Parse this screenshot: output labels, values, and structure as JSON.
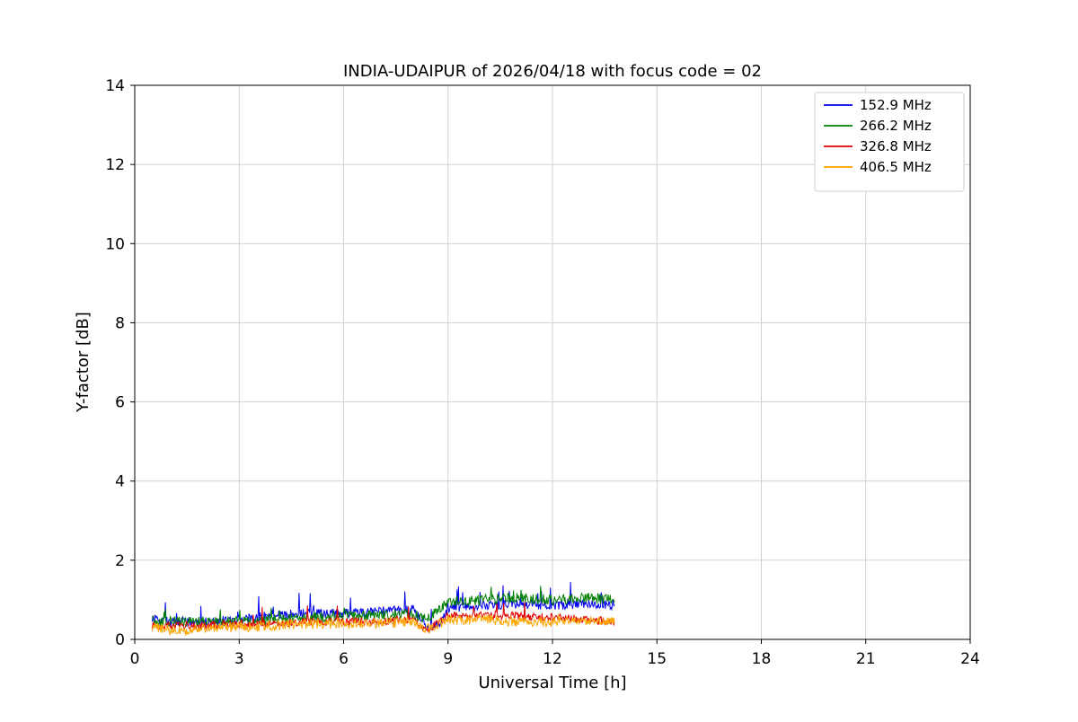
{
  "chart_data": {
    "type": "line",
    "title": "INDIA-UDAIPUR of 2026/04/18 with focus code = 02",
    "xlabel": "Universal Time [h]",
    "ylabel": "Y-factor [dB]",
    "xlim": [
      0,
      24
    ],
    "ylim": [
      0,
      14
    ],
    "xticks": [
      0,
      3,
      6,
      9,
      12,
      15,
      18,
      21,
      24
    ],
    "yticks": [
      0,
      2,
      4,
      6,
      8,
      10,
      12,
      14
    ],
    "grid": true,
    "legend_position": "upper right",
    "series": [
      {
        "name": "152.9 MHz",
        "color": "#0000ee",
        "x_start": 0.5,
        "x_end": 13.78,
        "baseline": [
          [
            0.5,
            0.5
          ],
          [
            1.0,
            0.45
          ],
          [
            2.0,
            0.45
          ],
          [
            3.0,
            0.5
          ],
          [
            4.0,
            0.62
          ],
          [
            5.0,
            0.65
          ],
          [
            6.0,
            0.65
          ],
          [
            7.0,
            0.7
          ],
          [
            8.0,
            0.75
          ],
          [
            8.4,
            0.3
          ],
          [
            8.8,
            0.4
          ],
          [
            9.0,
            0.8
          ],
          [
            10.0,
            0.85
          ],
          [
            11.0,
            0.9
          ],
          [
            12.0,
            0.85
          ],
          [
            13.0,
            0.9
          ],
          [
            13.78,
            0.85
          ]
        ],
        "noise_amp": 0.12,
        "spike_prob": 0.05,
        "spike_max": 0.5
      },
      {
        "name": "266.2 MHz",
        "color": "#008000",
        "x_start": 0.5,
        "x_end": 13.78,
        "baseline": [
          [
            0.5,
            0.45
          ],
          [
            2.0,
            0.45
          ],
          [
            3.0,
            0.45
          ],
          [
            4.0,
            0.5
          ],
          [
            5.0,
            0.55
          ],
          [
            6.0,
            0.6
          ],
          [
            7.0,
            0.6
          ],
          [
            8.0,
            0.65
          ],
          [
            8.4,
            0.5
          ],
          [
            9.0,
            0.95
          ],
          [
            10.0,
            1.0
          ],
          [
            11.0,
            1.05
          ],
          [
            12.0,
            1.0
          ],
          [
            13.0,
            1.05
          ],
          [
            13.78,
            1.0
          ]
        ],
        "noise_amp": 0.13,
        "spike_prob": 0.03,
        "spike_max": 0.4
      },
      {
        "name": "326.8 MHz",
        "color": "#e00000",
        "x_start": 0.5,
        "x_end": 13.78,
        "baseline": [
          [
            0.5,
            0.35
          ],
          [
            2.0,
            0.35
          ],
          [
            3.0,
            0.4
          ],
          [
            4.0,
            0.4
          ],
          [
            5.0,
            0.45
          ],
          [
            6.0,
            0.45
          ],
          [
            7.0,
            0.45
          ],
          [
            8.0,
            0.5
          ],
          [
            8.4,
            0.2
          ],
          [
            9.0,
            0.6
          ],
          [
            10.0,
            0.6
          ],
          [
            11.0,
            0.6
          ],
          [
            12.0,
            0.55
          ],
          [
            13.0,
            0.5
          ],
          [
            13.78,
            0.45
          ]
        ],
        "noise_amp": 0.1,
        "spike_prob": 0.025,
        "spike_max": 0.6
      },
      {
        "name": "406.5 MHz",
        "color": "#ffa500",
        "x_start": 0.5,
        "x_end": 13.78,
        "baseline": [
          [
            0.5,
            0.3
          ],
          [
            1.5,
            0.2
          ],
          [
            2.0,
            0.3
          ],
          [
            3.0,
            0.3
          ],
          [
            4.0,
            0.35
          ],
          [
            5.0,
            0.4
          ],
          [
            6.0,
            0.4
          ],
          [
            7.0,
            0.4
          ],
          [
            8.0,
            0.45
          ],
          [
            8.4,
            0.25
          ],
          [
            9.0,
            0.5
          ],
          [
            10.0,
            0.5
          ],
          [
            11.0,
            0.45
          ],
          [
            12.0,
            0.45
          ],
          [
            13.0,
            0.45
          ],
          [
            13.78,
            0.5
          ]
        ],
        "noise_amp": 0.13,
        "spike_prob": 0.012,
        "spike_max": 0.2
      }
    ]
  }
}
